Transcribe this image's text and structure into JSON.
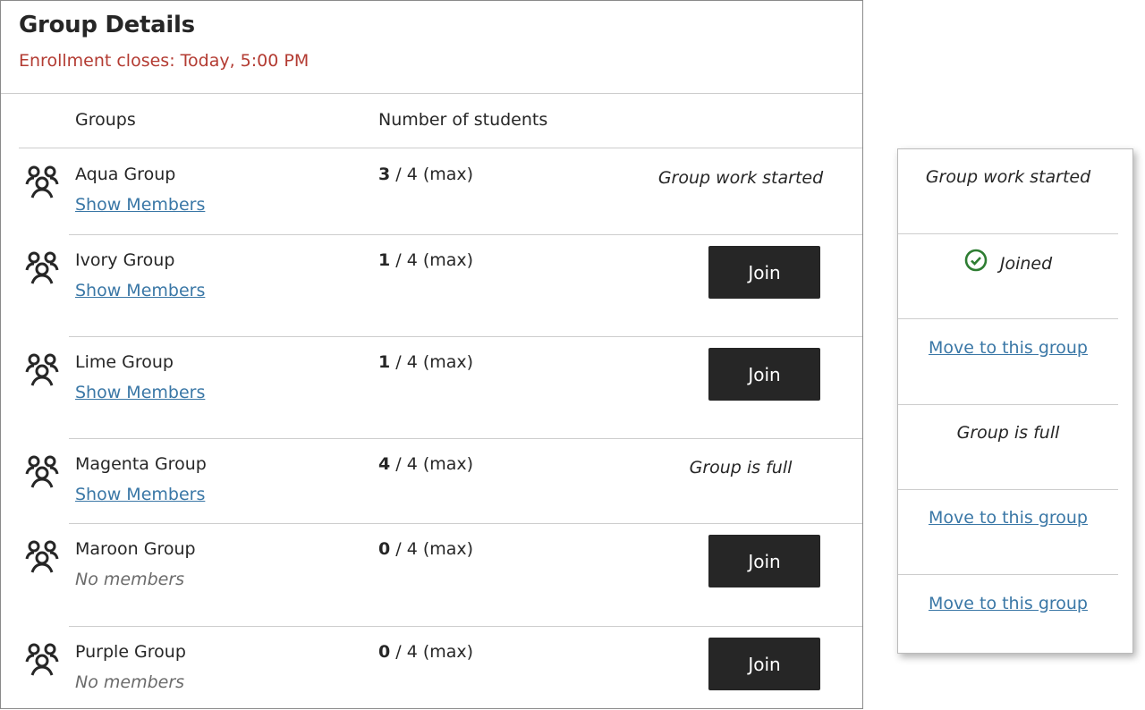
{
  "header": {
    "title": "Group Details",
    "enrollment": "Enrollment closes: Today, 5:00 PM"
  },
  "columns": {
    "groups": "Groups",
    "students": "Number of students"
  },
  "accent": "#b33b32",
  "link_color": "#3a77a6",
  "success_color": "#2e7d32",
  "groups": [
    {
      "name": "Aqua Group",
      "members": "Show Members",
      "count": "3",
      "max": " / 4 (max)",
      "status": "Group work started",
      "join": ""
    },
    {
      "name": "Ivory Group",
      "members": "Show Members",
      "count": "1",
      "max": " / 4 (max)",
      "status": "",
      "join": "Join"
    },
    {
      "name": "Lime Group",
      "members": "Show Members",
      "count": "1",
      "max": " / 4 (max)",
      "status": "",
      "join": "Join"
    },
    {
      "name": "Magenta Group",
      "members": "Show Members",
      "count": "4",
      "max": " / 4 (max)",
      "status": "Group is full",
      "join": ""
    },
    {
      "name": "Maroon Group",
      "members": "No members",
      "count": "0",
      "max": " / 4 (max)",
      "status": "",
      "join": "Join"
    },
    {
      "name": "Purple Group",
      "members": "No members",
      "count": "0",
      "max": " / 4 (max)",
      "status": "",
      "join": "Join"
    }
  ],
  "side_states": [
    {
      "type": "text",
      "label": "Group work started"
    },
    {
      "type": "joined",
      "label": "Joined",
      "icon": "check-circle-icon"
    },
    {
      "type": "link",
      "label": "Move to this group"
    },
    {
      "type": "text",
      "label": "Group is full"
    },
    {
      "type": "link",
      "label": "Move to this group"
    },
    {
      "type": "link",
      "label": "Move to this group"
    }
  ]
}
